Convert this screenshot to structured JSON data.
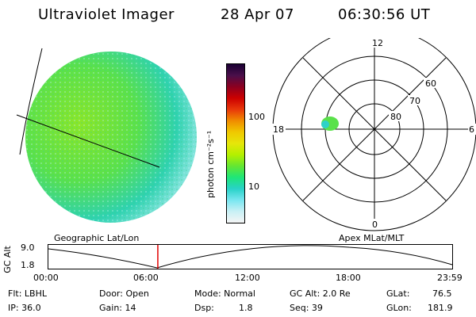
{
  "header": {
    "title": "Ultraviolet Imager",
    "date": "28 Apr 07",
    "time": "06:30:56 UT"
  },
  "colorbar": {
    "unit_label": "photon cm⁻²s⁻¹",
    "ticks": [
      "100",
      "10"
    ],
    "scale": "log",
    "colors": [
      "#1a0033",
      "#4a0f4a",
      "#8c0020",
      "#cc0000",
      "#e8380a",
      "#f08c00",
      "#f0c800",
      "#e6e60a",
      "#b4f000",
      "#64e632",
      "#1ee678",
      "#28d2c8",
      "#78e6f0",
      "#c8f0f5",
      "#f5f5f5"
    ]
  },
  "polar": {
    "mlt_labels": [
      "12",
      "18",
      "6",
      "0"
    ],
    "lat_labels": [
      "60",
      "70",
      "80"
    ]
  },
  "timeline": {
    "y_axis_title": "GC Alt",
    "y_ticks": [
      "9.0",
      "1.8"
    ],
    "left_label": "Geographic Lat/Lon",
    "right_label": "Apex MLat/MLT",
    "x_ticks": [
      "00:00",
      "06:00",
      "12:00",
      "18:00",
      "23:59"
    ],
    "current_time_fraction": 0.271,
    "marker_color": "#e00000"
  },
  "status": {
    "flt": "Flt: LBHL",
    "ip": "IP: 36.0",
    "door": "Door: Open",
    "gain": "Gain: 14",
    "mode": "Mode: Normal",
    "dsp_label": "Dsp:",
    "dsp_value": "1.8",
    "gcalt": "GC Alt: 2.0 Re",
    "seq": "Seq: 39",
    "glat": "GLat:",
    "glat_value": "76.5",
    "glon": "GLon:",
    "glon_value": "181.9"
  }
}
